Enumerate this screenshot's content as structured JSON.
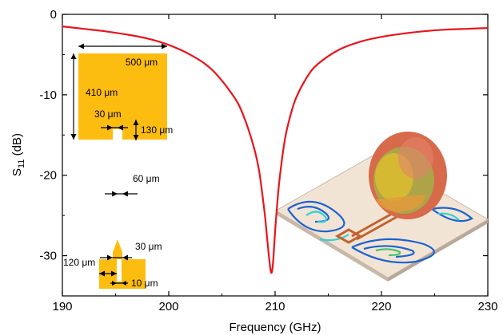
{
  "chart_data": {
    "type": "line",
    "xlabel": "Frequency (GHz)",
    "ylabel_main": "S",
    "ylabel_sub": "11",
    "ylabel_unit": " (dB)",
    "xlim": [
      190,
      230
    ],
    "ylim": [
      -35,
      0
    ],
    "x_ticks": [
      190,
      200,
      210,
      220,
      230
    ],
    "y_ticks": [
      0,
      -10,
      -20,
      -30
    ],
    "grid": false,
    "series": [
      {
        "color": "#e8141c",
        "x": [
          190,
          192,
          194,
          196,
          198,
          200,
          202,
          204,
          206,
          207,
          208,
          208.5,
          209,
          209.3,
          209.6,
          209.8,
          210,
          210.3,
          210.6,
          211,
          211.5,
          212,
          213,
          214,
          216,
          218,
          220,
          222,
          224,
          226,
          228,
          230
        ],
        "y": [
          -1.5,
          -1.8,
          -2.1,
          -2.5,
          -3.0,
          -3.8,
          -5.0,
          -6.8,
          -10.0,
          -12.5,
          -16.5,
          -19.5,
          -24.5,
          -28.5,
          -32.0,
          -31.0,
          -27.0,
          -22.0,
          -18.5,
          -15.0,
          -12.3,
          -10.3,
          -7.8,
          -6.2,
          -4.4,
          -3.4,
          -2.8,
          -2.4,
          -2.1,
          -1.9,
          -1.8,
          -1.7
        ]
      }
    ]
  },
  "inset": {
    "colors": {
      "metal": "#fdbd10",
      "arrows": "#000000"
    },
    "labels": {
      "width_500": "500 μm",
      "height_410": "410 μm",
      "gap_30_top": "30 μm",
      "slot_130": "130 μm",
      "line_60": "60 μm",
      "gap_30_bottom": "30 μm",
      "width_120": "120 μm",
      "slot_10": "10 μm"
    }
  },
  "radiation_inset": {
    "colors": {
      "substrate": "#f2e4d4",
      "edge": "#c8b8a8",
      "lobe_outer": "#d76a4a",
      "lobe_mid": "#9fb84a",
      "lobe_inner": "#e7c22a",
      "metal": "#c2612e",
      "current_blue": "#1b62d2",
      "current_cyan": "#31d0d6",
      "current_green": "#49c46b"
    }
  }
}
